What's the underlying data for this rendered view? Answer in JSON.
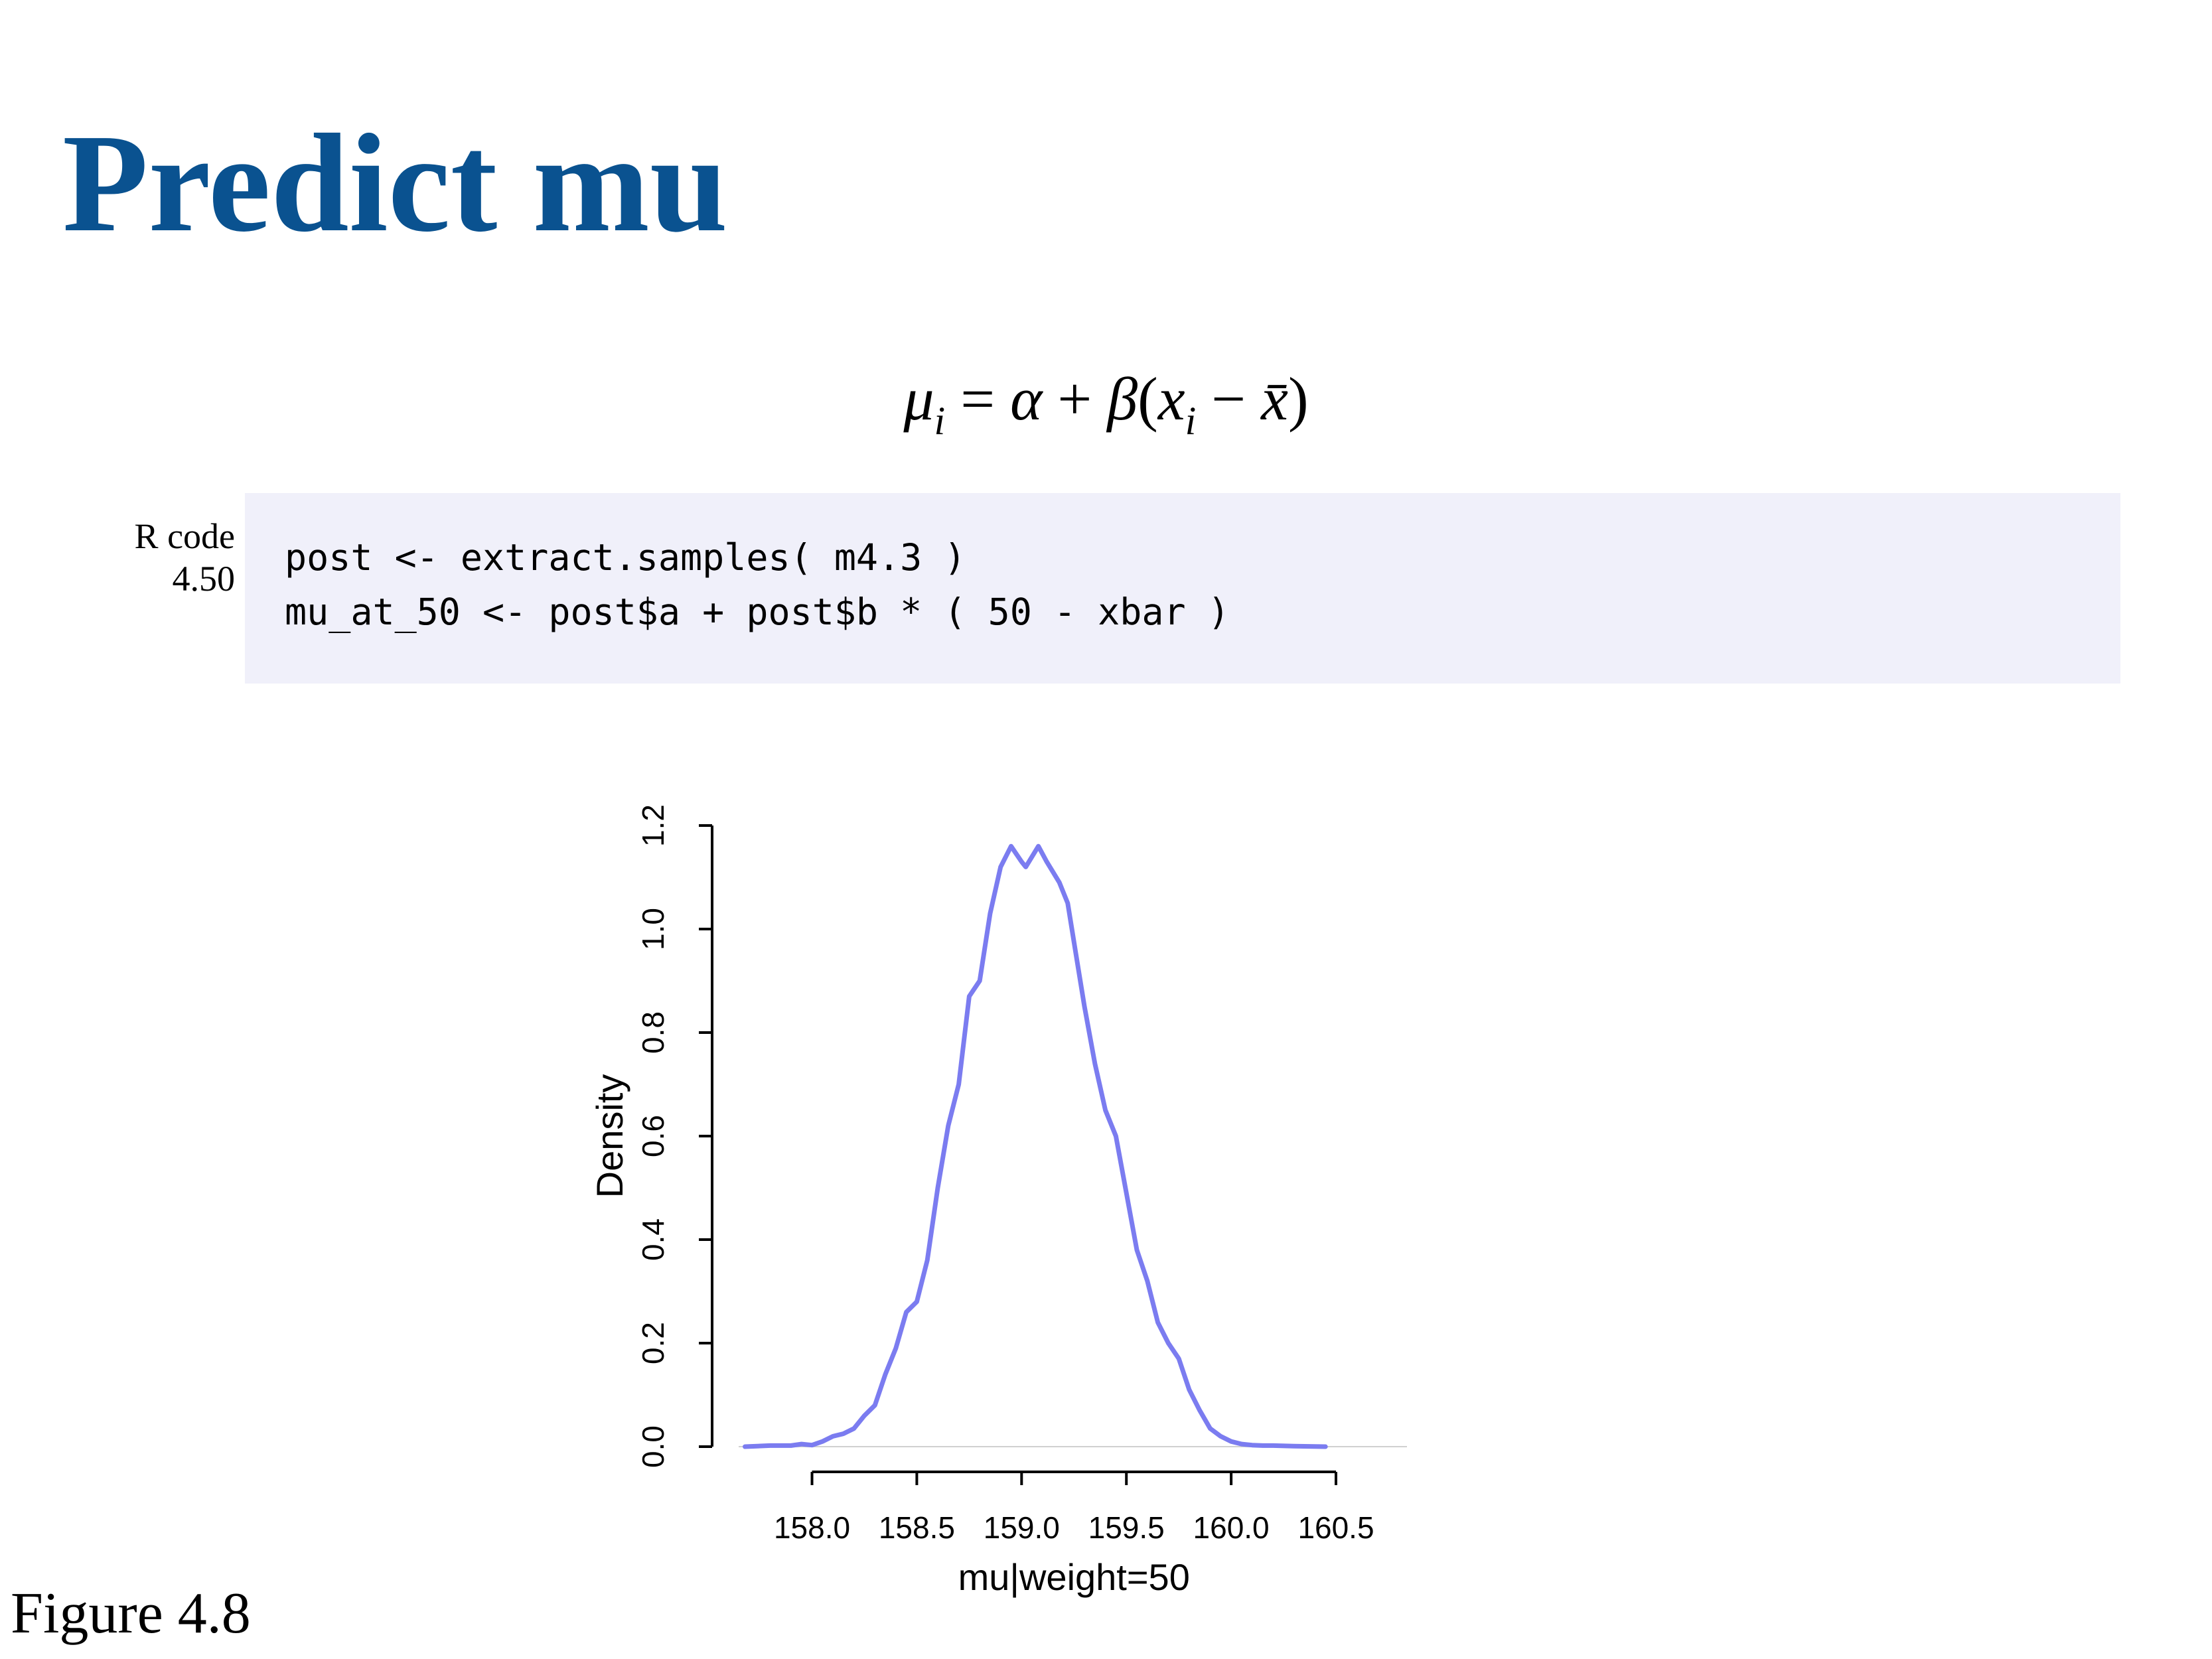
{
  "slide": {
    "title": "Predict mu",
    "title_color": "#0a5290",
    "equation": {
      "lhs": "μ",
      "lhs_sub": "i",
      "equals": " = ",
      "alpha": "α",
      "plus": " + ",
      "beta": "β",
      "open_paren": "(",
      "x": "x",
      "x_sub": "i",
      "minus": " − ",
      "xbar": "x̄",
      "close_paren": ")"
    },
    "code": {
      "label_line1": "R code",
      "label_line2": "4.50",
      "lines": [
        "post <- extract.samples( m4.3 )",
        "mu_at_50 <- post$a + post$b * ( 50 - xbar )"
      ],
      "background": "#f0f0fa"
    },
    "caption": "Figure 4.8"
  },
  "chart_data": {
    "type": "line",
    "title": "",
    "xlabel": "mu|weight=50",
    "ylabel": "Density",
    "xlim": [
      157.65,
      160.5
    ],
    "ylim": [
      0,
      1.2
    ],
    "xticks": [
      "158.0",
      "158.5",
      "159.0",
      "159.5",
      "160.0",
      "160.5"
    ],
    "yticks": [
      "0.0",
      "0.2",
      "0.4",
      "0.6",
      "0.8",
      "1.0",
      "1.2"
    ],
    "grid": false,
    "line_color": "#7b7cf0",
    "series": [
      {
        "x": [
          157.68,
          157.8,
          157.9,
          157.95,
          158.0,
          158.05,
          158.1,
          158.15,
          158.2,
          158.25,
          158.3,
          158.35,
          158.38,
          158.4,
          158.45,
          158.5,
          158.55,
          158.6,
          158.65,
          158.7,
          158.75,
          158.8,
          158.85,
          158.9,
          158.95,
          159.0,
          159.02,
          159.05,
          159.08,
          159.12,
          159.15,
          159.18,
          159.22,
          159.26,
          159.3,
          159.35,
          159.4,
          159.45,
          159.5,
          159.55,
          159.6,
          159.65,
          159.7,
          159.75,
          159.8,
          159.85,
          159.9,
          159.95,
          160.0,
          160.05,
          160.1,
          160.15,
          160.2,
          160.3,
          160.45
        ],
        "y": [
          0.0,
          0.002,
          0.002,
          0.005,
          0.003,
          0.01,
          0.02,
          0.025,
          0.035,
          0.06,
          0.08,
          0.14,
          0.17,
          0.19,
          0.26,
          0.28,
          0.36,
          0.5,
          0.62,
          0.7,
          0.87,
          0.9,
          1.03,
          1.12,
          1.16,
          1.13,
          1.12,
          1.14,
          1.16,
          1.13,
          1.11,
          1.09,
          1.05,
          0.95,
          0.85,
          0.74,
          0.65,
          0.6,
          0.49,
          0.38,
          0.32,
          0.24,
          0.2,
          0.17,
          0.11,
          0.07,
          0.035,
          0.02,
          0.01,
          0.005,
          0.003,
          0.002,
          0.002,
          0.001,
          0.0
        ]
      }
    ]
  }
}
